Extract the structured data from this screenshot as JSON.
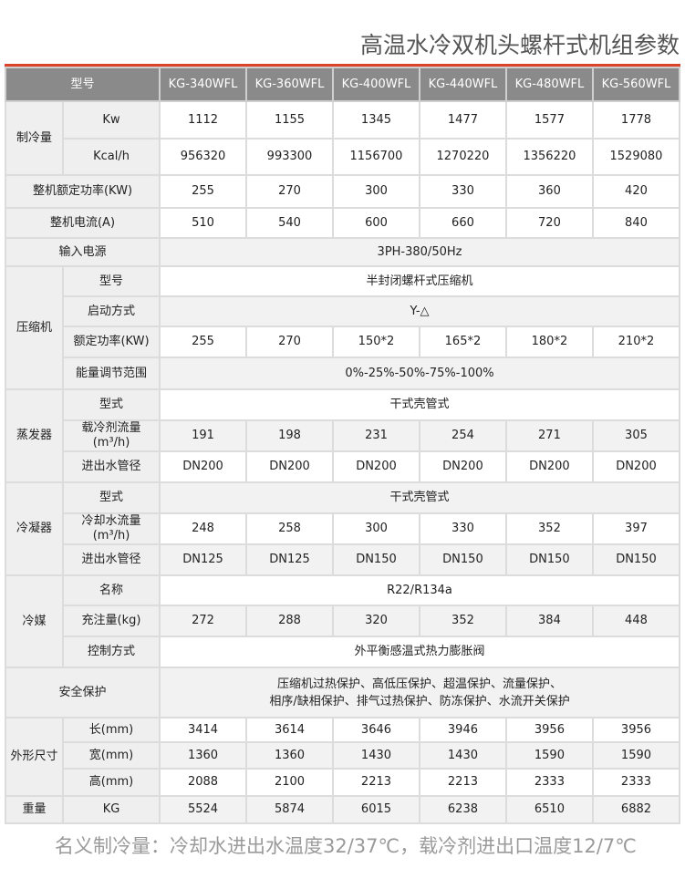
{
  "title": "高温水冷双机头螺杆式机组参数",
  "header": {
    "label": "型号",
    "models": [
      "KG-340WFL",
      "KG-360WFL",
      "KG-400WFL",
      "KG-440WFL",
      "KG-480WFL",
      "KG-560WFL"
    ]
  },
  "sections": [
    {
      "group": "制冷量",
      "rows": [
        {
          "label": "Kw",
          "values": [
            "1112",
            "1155",
            "1345",
            "1477",
            "1577",
            "1778"
          ]
        },
        {
          "label": "Kcal/h",
          "values": [
            "956320",
            "993300",
            "1156700",
            "1270220",
            "1356220",
            "1529080"
          ]
        }
      ]
    },
    {
      "group": "整机额定功率(KW)",
      "rows": [
        {
          "values": [
            "255",
            "270",
            "300",
            "330",
            "360",
            "420"
          ]
        }
      ]
    },
    {
      "group": "整机电流(A)",
      "rows": [
        {
          "values": [
            "510",
            "540",
            "600",
            "660",
            "720",
            "840"
          ]
        }
      ]
    },
    {
      "group": "输入电源",
      "rows": [
        {
          "span": "3PH-380/50Hz"
        }
      ]
    },
    {
      "group": "压缩机",
      "rows": [
        {
          "label": "型号",
          "span": "半封闭螺杆式压缩机"
        },
        {
          "label": "启动方式",
          "span": "Y-△"
        },
        {
          "label": "额定功率(KW)",
          "values": [
            "255",
            "270",
            "150*2",
            "165*2",
            "180*2",
            "210*2"
          ]
        },
        {
          "label": "能量调节范围",
          "span": "0%-25%-50%-75%-100%"
        }
      ]
    },
    {
      "group": "蒸发器",
      "rows": [
        {
          "label": "型式",
          "span": "干式壳管式"
        },
        {
          "label": "载冷剂流量(m³/h)",
          "values": [
            "191",
            "198",
            "231",
            "254",
            "271",
            "305"
          ]
        },
        {
          "label": "进出水管径",
          "values": [
            "DN200",
            "DN200",
            "DN200",
            "DN200",
            "DN200",
            "DN200"
          ]
        }
      ]
    },
    {
      "group": "冷凝器",
      "rows": [
        {
          "label": "型式",
          "span": "干式壳管式"
        },
        {
          "label": "冷却水流量(m³/h)",
          "values": [
            "248",
            "258",
            "300",
            "330",
            "352",
            "397"
          ]
        },
        {
          "label": "进出水管径",
          "values": [
            "DN125",
            "DN125",
            "DN150",
            "DN150",
            "DN150",
            "DN150"
          ]
        }
      ]
    },
    {
      "group": "冷媒",
      "rows": [
        {
          "label": "名称",
          "span": "R22/R134a"
        },
        {
          "label": "充注量(kg)",
          "values": [
            "272",
            "288",
            "320",
            "352",
            "384",
            "448"
          ]
        },
        {
          "label": "控制方式",
          "span": "外平衡感温式热力膨胀阀"
        }
      ]
    },
    {
      "group": "安全保护",
      "rows": [
        {
          "span_lines": [
            "压缩机过热保护、高低压保护、超温保护、流量保护、",
            "相序/缺相保护、排气过热保护、防冻保护、水流开关保护"
          ]
        }
      ]
    },
    {
      "group": "外形尺寸",
      "rows": [
        {
          "label": "长(mm)",
          "values": [
            "3414",
            "3614",
            "3646",
            "3946",
            "3956",
            "3956"
          ]
        },
        {
          "label": "宽(mm)",
          "values": [
            "1360",
            "1360",
            "1430",
            "1430",
            "1590",
            "1590"
          ]
        },
        {
          "label": "高(mm)",
          "values": [
            "2088",
            "2100",
            "2213",
            "2213",
            "2333",
            "2333"
          ]
        }
      ]
    },
    {
      "group": "重量",
      "rows": [
        {
          "label": "KG",
          "values": [
            "5524",
            "5874",
            "6015",
            "6238",
            "6510",
            "6882"
          ]
        }
      ]
    }
  ],
  "note": "名义制冷量：冷却水进出水温度32/37℃，载冷剂进出口温度12/7℃",
  "colors": {
    "accent": "#d9442b",
    "header_bg": "#8a8a8a",
    "label_bg": "#efefef"
  }
}
